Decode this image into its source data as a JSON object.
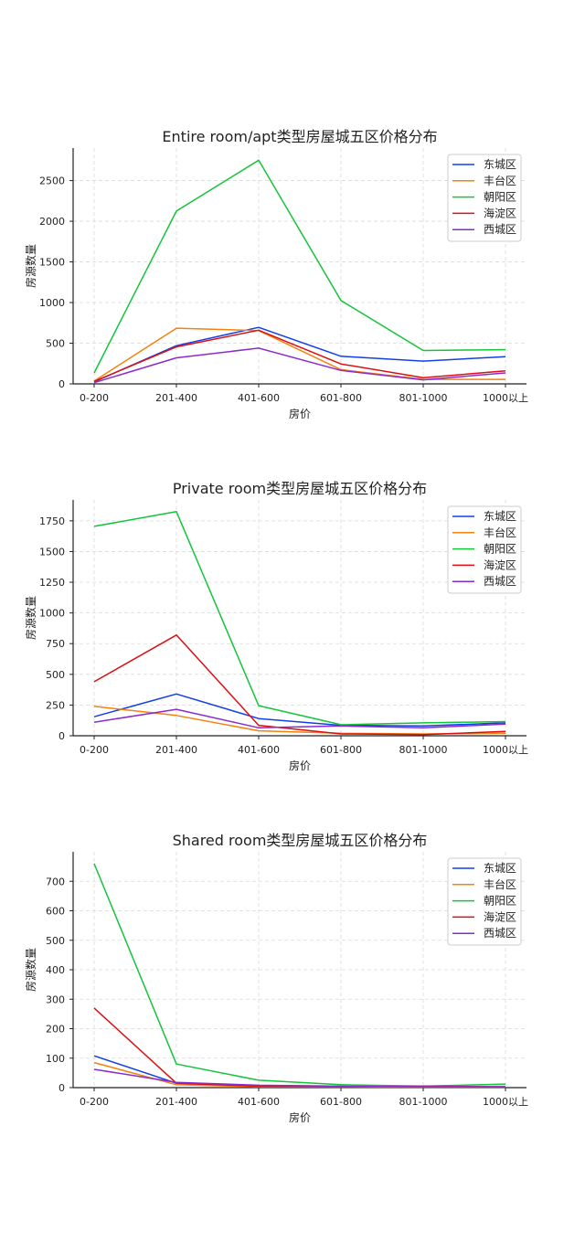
{
  "colors": {
    "东城区": "#1240e6",
    "丰台区": "#f5820d",
    "朝阳区": "#14c43a",
    "海淀区": "#dd0f12",
    "西城区": "#8a2bd0"
  },
  "chart_data": [
    {
      "type": "line",
      "title": "Entire room/apt类型房屋城五区价格分布",
      "xlabel": "房价",
      "ylabel": "房源数量",
      "categories": [
        "0-200",
        "201-400",
        "401-600",
        "601-800",
        "801-1000",
        "1000以上"
      ],
      "ylim": [
        0,
        2900
      ],
      "yticks": [
        0,
        500,
        1000,
        1500,
        2000,
        2500
      ],
      "grid": true,
      "legend": "top-right",
      "series": [
        {
          "name": "东城区",
          "values": [
            25,
            470,
            695,
            340,
            280,
            335
          ]
        },
        {
          "name": "丰台区",
          "values": [
            35,
            685,
            655,
            175,
            55,
            55
          ]
        },
        {
          "name": "朝阳区",
          "values": [
            135,
            2125,
            2750,
            1025,
            410,
            420
          ]
        },
        {
          "name": "海淀区",
          "values": [
            30,
            455,
            660,
            245,
            75,
            160
          ]
        },
        {
          "name": "西城区",
          "values": [
            15,
            320,
            440,
            165,
            50,
            135
          ]
        }
      ]
    },
    {
      "type": "line",
      "title": "Private room类型房屋城五区价格分布",
      "xlabel": "房价",
      "ylabel": "房源数量",
      "categories": [
        "0-200",
        "201-400",
        "401-600",
        "601-800",
        "801-1000",
        "1000以上"
      ],
      "ylim": [
        0,
        1920
      ],
      "yticks": [
        0,
        250,
        500,
        750,
        1000,
        1250,
        1500,
        1750
      ],
      "grid": true,
      "legend": "top-right",
      "series": [
        {
          "name": "东城区",
          "values": [
            155,
            340,
            140,
            85,
            80,
            105
          ]
        },
        {
          "name": "丰台区",
          "values": [
            240,
            165,
            40,
            20,
            15,
            20
          ]
        },
        {
          "name": "朝阳区",
          "values": [
            1705,
            1825,
            245,
            90,
            105,
            115
          ]
        },
        {
          "name": "海淀区",
          "values": [
            440,
            820,
            85,
            15,
            10,
            35
          ]
        },
        {
          "name": "西城区",
          "values": [
            110,
            215,
            65,
            80,
            65,
            95
          ]
        }
      ]
    },
    {
      "type": "line",
      "title": "Shared room类型房屋城五区价格分布",
      "xlabel": "房价",
      "ylabel": "房源数量",
      "categories": [
        "0-200",
        "201-400",
        "401-600",
        "601-800",
        "801-1000",
        "1000以上"
      ],
      "ylim": [
        0,
        800
      ],
      "yticks": [
        0,
        100,
        200,
        300,
        400,
        500,
        600,
        700
      ],
      "grid": true,
      "legend": "top-right",
      "series": [
        {
          "name": "东城区",
          "values": [
            108,
            15,
            5,
            3,
            2,
            2
          ]
        },
        {
          "name": "丰台区",
          "values": [
            85,
            10,
            3,
            2,
            2,
            2
          ]
        },
        {
          "name": "朝阳区",
          "values": [
            760,
            80,
            25,
            10,
            5,
            12
          ]
        },
        {
          "name": "海淀区",
          "values": [
            270,
            15,
            5,
            3,
            5,
            3
          ]
        },
        {
          "name": "西城区",
          "values": [
            62,
            18,
            8,
            5,
            3,
            3
          ]
        }
      ]
    }
  ]
}
